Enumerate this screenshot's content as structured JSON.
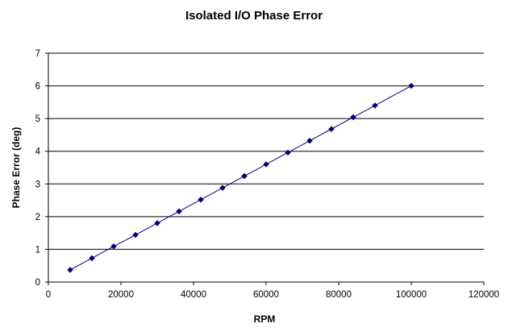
{
  "chart_data": {
    "type": "scatter",
    "title": "Isolated I/O Phase Error",
    "xlabel": "RPM",
    "ylabel": "Phase Error (deg)",
    "xlim": [
      0,
      120000
    ],
    "ylim": [
      0,
      7
    ],
    "x_ticks": [
      0,
      20000,
      40000,
      60000,
      80000,
      100000,
      120000
    ],
    "y_ticks": [
      0,
      1,
      2,
      3,
      4,
      5,
      6,
      7
    ],
    "x_tick_labels": [
      "0",
      "20000",
      "40000",
      "60000",
      "80000",
      "100000",
      "120000"
    ],
    "y_tick_labels": [
      "0",
      "1",
      "2",
      "3",
      "4",
      "5",
      "6",
      "7"
    ],
    "grid": "horizontal major gridlines",
    "legend": "none",
    "series": [
      {
        "x": [
          6000,
          12000,
          18000,
          24000,
          30000,
          36000,
          42000,
          48000,
          54000,
          60000,
          66000,
          72000,
          78000,
          84000,
          90000,
          100000
        ],
        "y": [
          0.37,
          0.73,
          1.09,
          1.44,
          1.8,
          2.16,
          2.52,
          2.88,
          3.24,
          3.6,
          3.96,
          4.32,
          4.68,
          5.04,
          5.4,
          6.0
        ],
        "color": "#000080",
        "marker": "diamond",
        "line": true
      }
    ]
  }
}
